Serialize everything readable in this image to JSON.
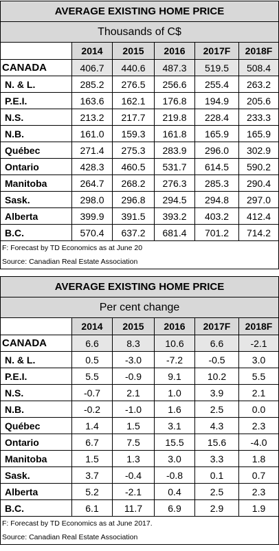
{
  "tables": [
    {
      "title": "AVERAGE EXISTING HOME PRICE",
      "subtitle": "Thousands of C$",
      "columns": [
        "2014",
        "2015",
        "2016",
        "2017F",
        "2018F"
      ],
      "rows": [
        {
          "label": "CANADA",
          "values": [
            "406.7",
            "440.6",
            "487.3",
            "519.5",
            "508.4"
          ]
        },
        {
          "label": "N. & L.",
          "values": [
            "285.2",
            "276.5",
            "256.6",
            "255.4",
            "263.2"
          ]
        },
        {
          "label": "P.E.I.",
          "values": [
            "163.6",
            "162.1",
            "176.8",
            "194.9",
            "205.6"
          ]
        },
        {
          "label": "N.S.",
          "values": [
            "213.2",
            "217.7",
            "219.8",
            "228.4",
            "233.3"
          ]
        },
        {
          "label": "N.B.",
          "values": [
            "161.0",
            "159.3",
            "161.8",
            "165.9",
            "165.9"
          ]
        },
        {
          "label": "Québec",
          "values": [
            "271.4",
            "275.3",
            "283.9",
            "296.0",
            "302.9"
          ]
        },
        {
          "label": "Ontario",
          "values": [
            "428.3",
            "460.5",
            "531.7",
            "614.5",
            "590.2"
          ]
        },
        {
          "label": "Manitoba",
          "values": [
            "264.7",
            "268.2",
            "276.3",
            "285.3",
            "290.4"
          ]
        },
        {
          "label": "Sask.",
          "values": [
            "298.0",
            "296.8",
            "294.5",
            "294.8",
            "297.0"
          ]
        },
        {
          "label": "Alberta",
          "values": [
            "399.9",
            "391.5",
            "393.2",
            "403.2",
            "412.4"
          ]
        },
        {
          "label": "B.C.",
          "values": [
            "570.4",
            "637.2",
            "681.4",
            "701.2",
            "714.2"
          ]
        }
      ],
      "notes": [
        "F: Forecast by TD Economics as at June 20",
        "Source: Canadian Real Estate Association"
      ]
    },
    {
      "title": "AVERAGE EXISTING HOME PRICE",
      "subtitle": "Per cent change",
      "columns": [
        "2014",
        "2015",
        "2016",
        "2017F",
        "2018F"
      ],
      "rows": [
        {
          "label": "CANADA",
          "values": [
            "6.6",
            "8.3",
            "10.6",
            "6.6",
            "-2.1"
          ]
        },
        {
          "label": "N. & L.",
          "values": [
            "0.5",
            "-3.0",
            "-7.2",
            "-0.5",
            "3.0"
          ]
        },
        {
          "label": "P.E.I.",
          "values": [
            "5.5",
            "-0.9",
            "9.1",
            "10.2",
            "5.5"
          ]
        },
        {
          "label": "N.S.",
          "values": [
            "-0.7",
            "2.1",
            "1.0",
            "3.9",
            "2.1"
          ]
        },
        {
          "label": "N.B.",
          "values": [
            "-0.2",
            "-1.0",
            "1.6",
            "2.5",
            "0.0"
          ]
        },
        {
          "label": "Québec",
          "values": [
            "1.4",
            "1.5",
            "3.1",
            "4.3",
            "2.3"
          ]
        },
        {
          "label": "Ontario",
          "values": [
            "6.7",
            "7.5",
            "15.5",
            "15.6",
            "-4.0"
          ]
        },
        {
          "label": "Manitoba",
          "values": [
            "1.5",
            "1.3",
            "3.0",
            "3.3",
            "1.8"
          ]
        },
        {
          "label": "Sask.",
          "values": [
            "3.7",
            "-0.4",
            "-0.8",
            "0.1",
            "0.7"
          ]
        },
        {
          "label": "Alberta",
          "values": [
            "5.2",
            "-2.1",
            "0.4",
            "2.5",
            "2.3"
          ]
        },
        {
          "label": "B.C.",
          "values": [
            "6.1",
            "11.7",
            "6.9",
            "2.9",
            "1.9"
          ]
        }
      ],
      "notes": [
        "F: Forecast by TD Economics as at June 2017.",
        "Source: Canadian Real Estate Association"
      ]
    }
  ],
  "colors": {
    "header_fill": "#d8d8d8",
    "canada_fill": "#e6e6e6",
    "border": "#000000"
  }
}
